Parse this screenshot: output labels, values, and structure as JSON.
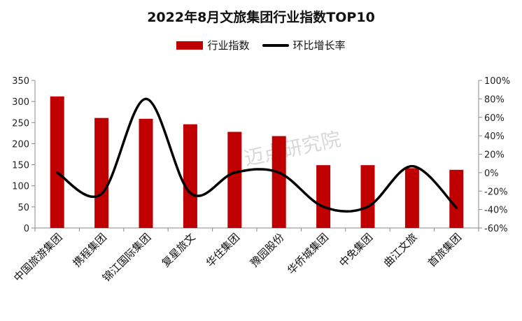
{
  "chart_data": {
    "type": "bar",
    "title": "2022年8月文旅集团行业指数TOP10",
    "categories": [
      "中国旅游集团",
      "携程集团",
      "锦江国际集团",
      "复星旅文",
      "华住集团",
      "豫园股份",
      "华侨城集团",
      "中免集团",
      "曲江文旅",
      "首旅集团"
    ],
    "series": [
      {
        "name": "行业指数",
        "type": "bar",
        "axis": "left",
        "color": "#c00000",
        "values": [
          312,
          261,
          259,
          246,
          228,
          218,
          149,
          149,
          142,
          138
        ]
      },
      {
        "name": "环比增长率",
        "type": "line",
        "axis": "right",
        "color": "#000000",
        "values": [
          0,
          -23,
          80,
          -22,
          0,
          0,
          -37,
          -37,
          7,
          -38
        ]
      }
    ],
    "left_axis": {
      "min": 0,
      "max": 350,
      "step": 50,
      "ticks": [
        "0",
        "50",
        "100",
        "150",
        "200",
        "250",
        "300",
        "350"
      ]
    },
    "right_axis": {
      "min": -60,
      "max": 100,
      "step": 20,
      "ticks": [
        "-60%",
        "-40%",
        "-20%",
        "0%",
        "20%",
        "40%",
        "60%",
        "80%",
        "100%"
      ]
    },
    "grid": false,
    "legend_position": "top"
  },
  "watermark": "迈点研究院"
}
